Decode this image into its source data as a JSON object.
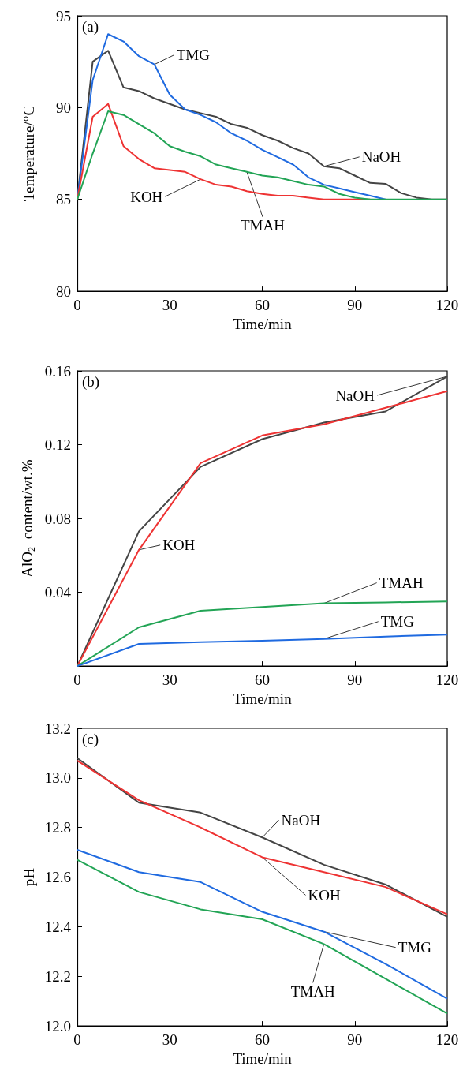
{
  "chart_data": [
    {
      "type": "line",
      "xlabel": "Time/min",
      "ylabel": "Temperature/°C",
      "annotations": [
        "(a)"
      ],
      "marker": "none",
      "x": [
        0,
        5,
        10,
        15,
        20,
        25,
        30,
        35,
        40,
        45,
        50,
        55,
        60,
        65,
        70,
        75,
        80,
        85,
        90,
        95,
        100,
        105,
        110,
        115,
        120
      ],
      "xlim": [
        0,
        120
      ],
      "xticks": [
        0,
        30,
        60,
        90,
        120
      ],
      "ylim": [
        80,
        95
      ],
      "yticks": [
        80,
        85,
        90,
        95
      ],
      "series": [
        {
          "name": "NaOH",
          "color": "#444444",
          "values": [
            85,
            92.5,
            93.1,
            91.1,
            90.9,
            90.5,
            90.2,
            89.9,
            89.7,
            89.5,
            89.1,
            88.9,
            88.5,
            88.2,
            87.8,
            87.5,
            86.8,
            86.7,
            86.3,
            85.9,
            85.85,
            85.35,
            85.1,
            85,
            85
          ]
        },
        {
          "name": "TMG",
          "color": "#1f6ae0",
          "values": [
            85,
            91.5,
            94,
            93.6,
            92.8,
            92.35,
            90.7,
            89.9,
            89.6,
            89.2,
            88.6,
            88.2,
            87.7,
            87.3,
            86.9,
            86.2,
            85.8,
            85.6,
            85.4,
            85.2,
            85,
            null,
            null,
            null,
            null
          ]
        },
        {
          "name": "KOH",
          "color": "#ee3333",
          "values": [
            85,
            89.5,
            90.2,
            87.9,
            87.2,
            86.7,
            86.6,
            86.5,
            86.1,
            85.8,
            85.7,
            85.45,
            85.3,
            85.2,
            85.2,
            85.1,
            85,
            85,
            85,
            85,
            null,
            null,
            null,
            null,
            null
          ]
        },
        {
          "name": "TMAH",
          "color": "#22a455",
          "values": [
            85,
            87.5,
            89.8,
            89.6,
            89.1,
            88.6,
            87.9,
            87.6,
            87.35,
            86.9,
            86.7,
            86.5,
            86.3,
            86.2,
            86,
            85.8,
            85.7,
            85.3,
            85.1,
            85,
            85,
            85,
            85,
            85,
            85
          ]
        }
      ]
    },
    {
      "type": "line",
      "xlabel": "Time/min",
      "ylabel": "AlO$_{2}$$^{-}$ content/wt.%",
      "annotations": [
        "(b)"
      ],
      "marker": "none",
      "x": [
        0,
        20,
        40,
        60,
        80,
        100,
        120
      ],
      "xlim": [
        0,
        120
      ],
      "xticks": [
        0,
        30,
        60,
        90,
        120
      ],
      "ylim": [
        0,
        0.16
      ],
      "yticks": [
        0.04,
        0.08,
        0.12,
        0.16
      ],
      "series": [
        {
          "name": "NaOH",
          "color": "#444444",
          "values": [
            0,
            0.073,
            0.108,
            0.123,
            0.132,
            0.138,
            0.157
          ]
        },
        {
          "name": "KOH",
          "color": "#ee3333",
          "values": [
            0,
            0.063,
            0.11,
            0.125,
            0.131,
            0.14,
            0.149
          ]
        },
        {
          "name": "TMAH",
          "color": "#22a455",
          "values": [
            0,
            0.021,
            0.03,
            0.032,
            0.034,
            0.0345,
            0.035
          ]
        },
        {
          "name": "TMG",
          "color": "#1f6ae0",
          "values": [
            0,
            0.012,
            0.013,
            0.0137,
            0.0147,
            0.016,
            0.017
          ]
        }
      ]
    },
    {
      "type": "line",
      "xlabel": "Time/min",
      "ylabel": "pH",
      "annotations": [
        "(c)"
      ],
      "marker": "none",
      "x": [
        0,
        20,
        40,
        60,
        80,
        100,
        120
      ],
      "xlim": [
        0,
        120
      ],
      "xticks": [
        0,
        30,
        60,
        90,
        120
      ],
      "ylim": [
        12,
        13.2
      ],
      "yticks": [
        {
          "value": 12,
          "label": "12.0"
        },
        12.2,
        12.4,
        12.6,
        12.8,
        {
          "value": 13,
          "label": "13.0"
        },
        13.2
      ],
      "series": [
        {
          "name": "NaOH",
          "color": "#444444",
          "values": [
            13.08,
            12.9,
            12.86,
            12.76,
            12.65,
            12.57,
            12.44
          ]
        },
        {
          "name": "KOH",
          "color": "#ee3333",
          "values": [
            13.07,
            12.91,
            12.8,
            12.68,
            12.62,
            12.56,
            12.45
          ]
        },
        {
          "name": "TMAH",
          "color": "#22a455",
          "values": [
            12.67,
            12.54,
            12.47,
            12.43,
            12.33,
            12.19,
            12.05
          ]
        },
        {
          "name": "TMG",
          "color": "#1f6ae0",
          "values": [
            12.71,
            12.62,
            12.58,
            12.46,
            12.38,
            12.25,
            12.11
          ]
        }
      ]
    }
  ]
}
